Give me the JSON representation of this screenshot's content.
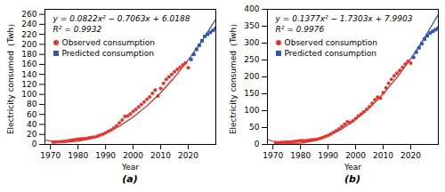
{
  "chart_data": [
    {
      "type": "scatter",
      "title": "(a)",
      "xlabel": "Year",
      "ylabel": "Electricity consumed（Twh）",
      "xlim": [
        1968,
        2030
      ],
      "xticks": [
        1970,
        1980,
        1990,
        2000,
        2010,
        2020
      ],
      "ylim": [
        0,
        270
      ],
      "yticks": [
        0,
        20,
        40,
        60,
        80,
        100,
        120,
        140,
        160,
        180,
        200,
        220,
        240,
        260
      ],
      "grid": false,
      "legend": "upper left",
      "annotations": [
        "y = 0.0822x² − 0.7063x + 6.0188",
        "R² = 0.9932"
      ],
      "series": [
        {
          "name": "Observed consumption",
          "color": "#e8332a",
          "marker": "circle",
          "x": [
            1971,
            1972,
            1973,
            1974,
            1975,
            1976,
            1977,
            1978,
            1979,
            1980,
            1981,
            1982,
            1983,
            1984,
            1985,
            1986,
            1987,
            1988,
            1989,
            1990,
            1991,
            1992,
            1993,
            1994,
            1995,
            1996,
            1997,
            1998,
            1999,
            2000,
            2001,
            2002,
            2003,
            2004,
            2005,
            2006,
            2007,
            2008,
            2009,
            2010,
            2011,
            2012,
            2013,
            2014,
            2015,
            2016,
            2017,
            2018,
            2019,
            2020
          ],
          "values": [
            4.5,
            4.8,
            5.3,
            5.7,
            6.0,
            6.8,
            7.8,
            8.8,
            9.8,
            10.8,
            11.2,
            11.5,
            12.2,
            13.2,
            14.2,
            14.8,
            16.5,
            18.5,
            20.5,
            23.0,
            26.0,
            29.0,
            33.0,
            37.5,
            43.0,
            49.0,
            56.0,
            57.0,
            61.0,
            66.0,
            70.0,
            75.0,
            80.0,
            85.0,
            90.0,
            95.0,
            102.0,
            109.0,
            97.0,
            112.0,
            122.0,
            130.0,
            135.0,
            140.0,
            145.0,
            150.0,
            154.0,
            159.0,
            163.0,
            153.0
          ]
        },
        {
          "name": "Predicted consumption",
          "color": "#3355aa",
          "marker": "square",
          "x": [
            2021,
            2022,
            2023,
            2024,
            2025,
            2026,
            2027,
            2028,
            2029,
            2030
          ],
          "values": [
            170.0,
            180.0,
            190.0,
            198.0,
            207.0,
            216.0,
            220.0,
            224.0,
            228.0,
            232.0
          ]
        }
      ],
      "curves": [
        {
          "type": "line",
          "color": "#cc2222",
          "x": [
            1968,
            1970,
            1975,
            1980,
            1985,
            1990,
            1995,
            2000,
            2005,
            2010,
            2015,
            2020,
            2020.5
          ],
          "values": [
            8.8775,
            6.8073,
            4.5088,
            6.3203,
            12.2418,
            22.2733,
            36.4148,
            54.6663,
            77.0278,
            103.4993,
            134.0808,
            168.7723,
            172.4675
          ]
        },
        {
          "type": "line",
          "color": "#3355aa",
          "x": [
            2020.5,
            2025,
            2030
          ],
          "values": [
            172.4675,
            207.5738,
            250.4853
          ]
        }
      ]
    },
    {
      "type": "scatter",
      "title": "(b)",
      "xlabel": "Year",
      "ylabel": "Electricity consumed（Twh）",
      "xlim": [
        1968,
        2030
      ],
      "xticks": [
        1970,
        1980,
        1990,
        2000,
        2010,
        2020
      ],
      "ylim": [
        0,
        400
      ],
      "yticks": [
        0,
        50,
        100,
        150,
        200,
        250,
        300,
        350,
        400
      ],
      "grid": false,
      "legend": "upper left",
      "annotations": [
        "y = 0.1377x² − 1.7303x + 7.9903",
        "R² = 0.9976"
      ],
      "series": [
        {
          "name": "Observed consumption",
          "color": "#e8332a",
          "marker": "circle",
          "x": [
            1971,
            1972,
            1973,
            1974,
            1975,
            1976,
            1977,
            1978,
            1979,
            1980,
            1981,
            1982,
            1983,
            1984,
            1985,
            1986,
            1987,
            1988,
            1989,
            1990,
            1991,
            1992,
            1993,
            1994,
            1995,
            1996,
            1997,
            1998,
            1999,
            2000,
            2001,
            2002,
            2003,
            2004,
            2005,
            2006,
            2007,
            2008,
            2009,
            2010,
            2011,
            2012,
            2013,
            2014,
            2015,
            2016,
            2017,
            2018,
            2019,
            2020
          ],
          "values": [
            5.0,
            5.5,
            6.0,
            6.5,
            7.0,
            7.5,
            8.0,
            9.0,
            10.0,
            11.0,
            11.5,
            11.5,
            12.5,
            13.5,
            14.5,
            15.0,
            17.5,
            20.5,
            23.5,
            27.0,
            31.0,
            36.0,
            41.0,
            46.0,
            53.0,
            60.0,
            67.0,
            65.0,
            70.0,
            77.0,
            84.0,
            90.0,
            97.0,
            104.0,
            112.0,
            122.0,
            132.0,
            140.0,
            137.0,
            153.0,
            168.0,
            181.0,
            193.0,
            203.0,
            211.0,
            219.0,
            228.0,
            238.0,
            246.0,
            241.0
          ]
        },
        {
          "name": "Predicted consumption",
          "color": "#3355aa",
          "marker": "square",
          "x": [
            2021,
            2022,
            2023,
            2024,
            2025,
            2026,
            2027,
            2028,
            2029,
            2030
          ],
          "values": [
            258.0,
            273.0,
            286.0,
            298.0,
            312.0,
            322.0,
            330.0,
            335.0,
            340.0,
            345.0
          ]
        }
      ],
      "curves": [
        {
          "type": "line",
          "color": "#cc2222",
          "x": [
            1968,
            1970,
            1975,
            1980,
            1985,
            1990,
            1995,
            2000,
            2005,
            2010,
            2015,
            2020,
            2020.5
          ],
          "values": [
            14.4205,
            9.8583,
            3.2723,
            3.5713,
            10.7553,
            24.8243,
            45.7783,
            73.6173,
            108.3413,
            149.9503,
            198.4443,
            253.8233,
            259.739875
          ]
        },
        {
          "type": "line",
          "color": "#3355aa",
          "x": [
            2020.5,
            2025,
            2030
          ],
          "values": [
            259.739875,
            316.0873,
            385.2363
          ]
        }
      ]
    }
  ]
}
